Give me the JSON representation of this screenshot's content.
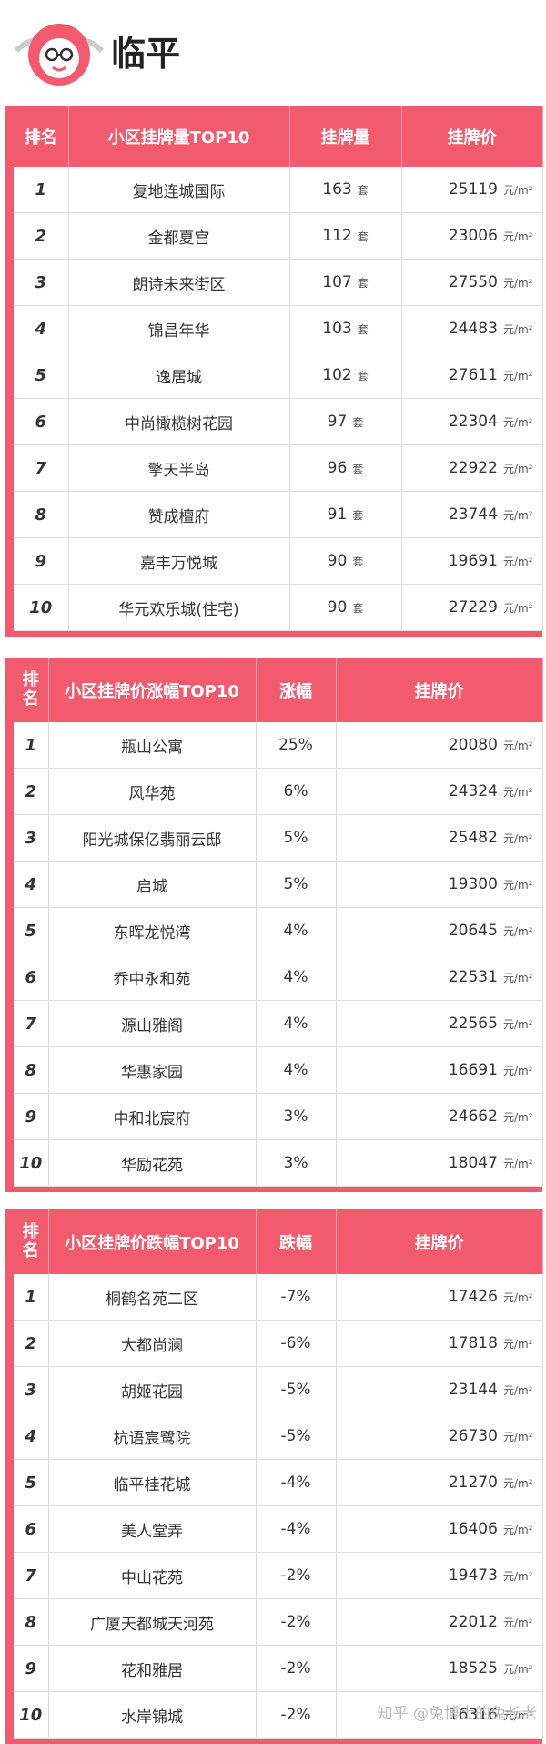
{
  "header": {
    "title": "临平"
  },
  "tables": [
    {
      "columns": [
        "排名",
        "小区挂牌量TOP10",
        "挂牌量",
        "挂牌价"
      ],
      "rows": [
        {
          "rank": 1,
          "name": "复地连城国际",
          "value": 163,
          "unit": "套",
          "price": 25119,
          "price_unit": "元/m²"
        },
        {
          "rank": 2,
          "name": "金都夏宫",
          "value": 112,
          "unit": "套",
          "price": 23006,
          "price_unit": "元/m²"
        },
        {
          "rank": 3,
          "name": "朗诗未来街区",
          "value": 107,
          "unit": "套",
          "price": 27550,
          "price_unit": "元/m²"
        },
        {
          "rank": 4,
          "name": "锦昌年华",
          "value": 103,
          "unit": "套",
          "price": 24483,
          "price_unit": "元/m²"
        },
        {
          "rank": 5,
          "name": "逸居城",
          "value": 102,
          "unit": "套",
          "price": 27611,
          "price_unit": "元/m²"
        },
        {
          "rank": 6,
          "name": "中尚橄榄树花园",
          "value": 97,
          "unit": "套",
          "price": 22304,
          "price_unit": "元/m²"
        },
        {
          "rank": 7,
          "name": "擎天半岛",
          "value": 96,
          "unit": "套",
          "price": 22922,
          "price_unit": "元/m²"
        },
        {
          "rank": 8,
          "name": "赞成檀府",
          "value": 91,
          "unit": "套",
          "price": 23744,
          "price_unit": "元/m²"
        },
        {
          "rank": 9,
          "name": "嘉丰万悦城",
          "value": 90,
          "unit": "套",
          "price": 19691,
          "price_unit": "元/m²"
        },
        {
          "rank": 10,
          "name": "华元欢乐城(住宅)",
          "value": 90,
          "unit": "套",
          "price": 27229,
          "price_unit": "元/m²"
        }
      ]
    },
    {
      "columns": [
        "排名",
        "小区挂牌价涨幅TOP10",
        "涨幅",
        "挂牌价"
      ],
      "rows": [
        {
          "rank": 1,
          "name": "瓶山公寓",
          "value": "25%",
          "price": 20080,
          "price_unit": "元/m²"
        },
        {
          "rank": 2,
          "name": "风华苑",
          "value": "6%",
          "price": 24324,
          "price_unit": "元/m²"
        },
        {
          "rank": 3,
          "name": "阳光城保亿翡丽云邸",
          "value": "5%",
          "price": 25482,
          "price_unit": "元/m²"
        },
        {
          "rank": 4,
          "name": "启城",
          "value": "5%",
          "price": 19300,
          "price_unit": "元/m²"
        },
        {
          "rank": 5,
          "name": "东晖龙悦湾",
          "value": "4%",
          "price": 20645,
          "price_unit": "元/m²"
        },
        {
          "rank": 6,
          "name": "乔中永和苑",
          "value": "4%",
          "price": 22531,
          "price_unit": "元/m²"
        },
        {
          "rank": 7,
          "name": "源山雅阁",
          "value": "4%",
          "price": 22565,
          "price_unit": "元/m²"
        },
        {
          "rank": 8,
          "name": "华惠家园",
          "value": "4%",
          "price": 16691,
          "price_unit": "元/m²"
        },
        {
          "rank": 9,
          "name": "中和北宸府",
          "value": "3%",
          "price": 24662,
          "price_unit": "元/m²"
        },
        {
          "rank": 10,
          "name": "华励花苑",
          "value": "3%",
          "price": 18047,
          "price_unit": "元/m²"
        }
      ]
    },
    {
      "columns": [
        "排名",
        "小区挂牌价跌幅TOP10",
        "跌幅",
        "挂牌价"
      ],
      "rows": [
        {
          "rank": 1,
          "name": "桐鹤名苑二区",
          "value": "-7%",
          "price": 17426,
          "price_unit": "元/m²"
        },
        {
          "rank": 2,
          "name": "大都尚澜",
          "value": "-6%",
          "price": 17818,
          "price_unit": "元/m²"
        },
        {
          "rank": 3,
          "name": "胡姬花园",
          "value": "-5%",
          "price": 23144,
          "price_unit": "元/m²"
        },
        {
          "rank": 4,
          "name": "杭语宸鹭院",
          "value": "-5%",
          "price": 26730,
          "price_unit": "元/m²"
        },
        {
          "rank": 5,
          "name": "临平桂花城",
          "value": "-4%",
          "price": 21270,
          "price_unit": "元/m²"
        },
        {
          "rank": 6,
          "name": "美人堂弄",
          "value": "-4%",
          "price": 16406,
          "price_unit": "元/m²"
        },
        {
          "rank": 7,
          "name": "中山花苑",
          "value": "-2%",
          "price": 19473,
          "price_unit": "元/m²"
        },
        {
          "rank": 8,
          "name": "广厦天都城天河苑",
          "value": "-2%",
          "price": 22012,
          "price_unit": "元/m²"
        },
        {
          "rank": 9,
          "name": "花和雅居",
          "value": "-2%",
          "price": 18525,
          "price_unit": "元/m²"
        },
        {
          "rank": 10,
          "name": "水岸锦城",
          "value": "-2%",
          "price": 16316,
          "price_unit": "元/m²"
        }
      ]
    }
  ],
  "watermark": "知乎 @兔博士的兔长老"
}
